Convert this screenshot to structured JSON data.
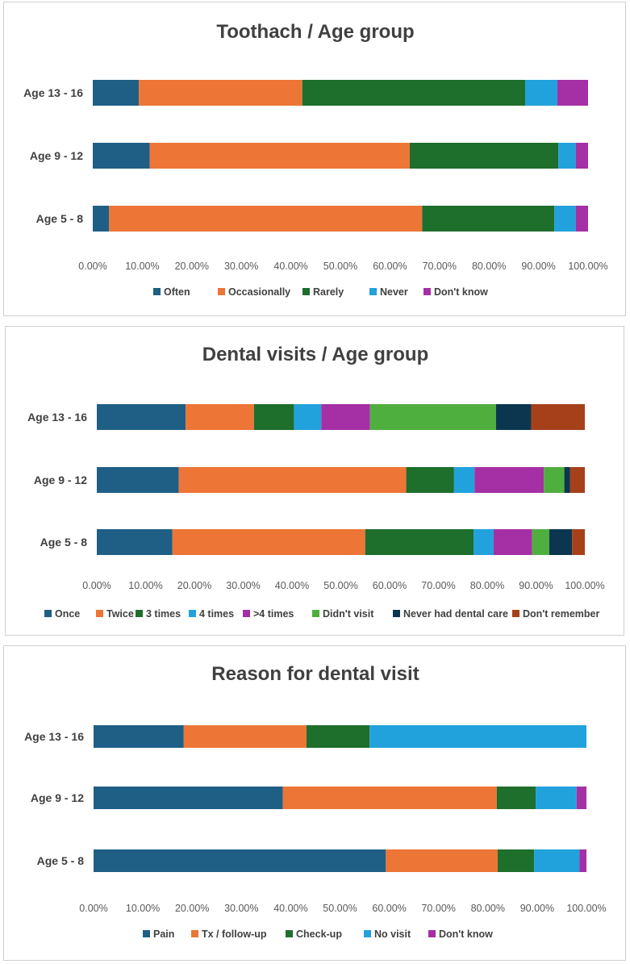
{
  "chart_data": [
    {
      "type": "bar",
      "orientation": "horizontal",
      "stacked": true,
      "title": "Toothach / Age group",
      "categories": [
        "Age 13 - 16",
        "Age 9 - 12",
        "Age 5 - 8"
      ],
      "xlim": [
        0,
        100
      ],
      "x_ticks": [
        "0.00%",
        "10.00%",
        "20.00%",
        "30.00%",
        "40.00%",
        "50.00%",
        "60.00%",
        "70.00%",
        "80.00%",
        "90.00%",
        "100.00%"
      ],
      "legend_position": "bottom",
      "grid": false,
      "series": [
        {
          "name": "Often",
          "color": "#1f5f86",
          "values": [
            9.3,
            11.5,
            3.3
          ]
        },
        {
          "name": "Occasionally",
          "color": "#ed7536",
          "values": [
            33.0,
            52.5,
            63.2
          ]
        },
        {
          "name": "Rarely",
          "color": "#1e6e2c",
          "values": [
            45.0,
            30.0,
            26.7
          ]
        },
        {
          "name": "Never",
          "color": "#21a2dc",
          "values": [
            6.5,
            3.5,
            4.3
          ]
        },
        {
          "name": "Don't know",
          "color": "#a52fa4",
          "values": [
            6.2,
            2.5,
            2.5
          ]
        }
      ]
    },
    {
      "type": "bar",
      "orientation": "horizontal",
      "stacked": true,
      "title": "Dental visits / Age group",
      "categories": [
        "Age 13 - 16",
        "Age 9 - 12",
        "Age 5 - 8"
      ],
      "xlim": [
        0,
        100
      ],
      "x_ticks": [
        "0.00%",
        "10.00%",
        "20.00%",
        "30.00%",
        "40.00%",
        "50.00%",
        "60.00%",
        "70.00%",
        "80.00%",
        "90.00%",
        "100.00%"
      ],
      "legend_position": "bottom",
      "grid": false,
      "series": [
        {
          "name": "Once",
          "color": "#1f5f86",
          "values": [
            18.2,
            16.8,
            15.5
          ]
        },
        {
          "name": "Twice",
          "color": "#ed7536",
          "values": [
            14.0,
            46.6,
            39.5
          ]
        },
        {
          "name": "3 times",
          "color": "#1e6e2c",
          "values": [
            8.2,
            9.8,
            22.2
          ]
        },
        {
          "name": "4 times",
          "color": "#21a2dc",
          "values": [
            5.6,
            4.2,
            4.1
          ]
        },
        {
          "name": ">4 times",
          "color": "#a52fa4",
          "values": [
            10.0,
            14.2,
            7.9
          ]
        },
        {
          "name": "Didn't visit",
          "color": "#4faf3e",
          "values": [
            25.8,
            4.2,
            3.5
          ]
        },
        {
          "name": "Never had dental care",
          "color": "#0c3650",
          "values": [
            7.2,
            1.2,
            4.7
          ]
        },
        {
          "name": "Don't remember",
          "color": "#a6401a",
          "values": [
            11.0,
            3.0,
            2.6
          ]
        }
      ]
    },
    {
      "type": "bar",
      "orientation": "horizontal",
      "stacked": true,
      "title": "Reason for dental visit",
      "categories": [
        "Age 13 - 16",
        "Age 9 - 12",
        "Age 5 - 8"
      ],
      "xlim": [
        0,
        100
      ],
      "x_ticks": [
        "0.00%",
        "10.00%",
        "20.00%",
        "30.00%",
        "40.00%",
        "50.00%",
        "60.00%",
        "70.00%",
        "80.00%",
        "90.00%",
        "100.00%"
      ],
      "legend_position": "bottom",
      "grid": false,
      "series": [
        {
          "name": "Pain",
          "color": "#1f5f86",
          "values": [
            18.3,
            38.4,
            59.3
          ]
        },
        {
          "name": "Tx / follow-up",
          "color": "#ed7536",
          "values": [
            24.9,
            43.4,
            22.7
          ]
        },
        {
          "name": "Check-up",
          "color": "#1e6e2c",
          "values": [
            12.8,
            7.9,
            7.4
          ]
        },
        {
          "name": "No visit",
          "color": "#21a2dc",
          "values": [
            44.0,
            8.3,
            9.2
          ]
        },
        {
          "name": "Don't know",
          "color": "#a52fa4",
          "values": [
            0.0,
            2.0,
            1.4
          ]
        }
      ]
    }
  ]
}
